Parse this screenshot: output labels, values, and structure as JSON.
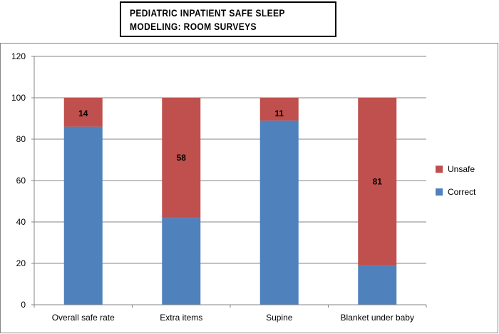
{
  "chart_title": {
    "line1": "PEDIATRIC  INPATIENT  SAFE  SLEEP",
    "line2": "MODELING: ROOM SURVEYS"
  },
  "chart_data": {
    "type": "bar",
    "stacked": true,
    "categories": [
      "Overall safe rate",
      "Extra items",
      "Supine",
      "Blanket  under  baby"
    ],
    "series": [
      {
        "name": "Correct",
        "values": [
          86,
          42,
          89,
          19
        ],
        "color": "#4f81bd"
      },
      {
        "name": "Unsafe",
        "values": [
          14,
          58,
          11,
          81
        ],
        "color": "#c0504d"
      }
    ],
    "data_labels": {
      "Unsafe": [
        "14",
        "58",
        "11",
        "81"
      ]
    },
    "ylim": [
      0,
      120
    ],
    "yticks": [
      "0",
      "20",
      "40",
      "60",
      "80",
      "100",
      "120"
    ],
    "grid": true,
    "legend_position": "right"
  }
}
